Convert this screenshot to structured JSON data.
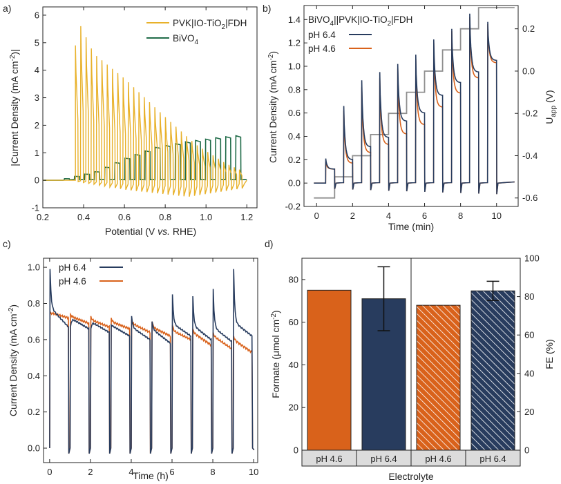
{
  "colors": {
    "pvk": "#e8b12a",
    "bivo4": "#1f6b48",
    "ph64": "#283c5e",
    "ph46": "#d9621b",
    "uapp": "#8f8f8f"
  },
  "chart_data": [
    {
      "panel": "a)",
      "type": "line",
      "xlabel": "Potential (V vs. RHE)",
      "ylabel": "|Current Density (mA cm⁻²)|",
      "xlim": [
        0.2,
        1.25
      ],
      "ylim": [
        -1,
        6.3
      ],
      "xticks": [
        "0.2",
        "0.4",
        "0.6",
        "0.8",
        "1.0",
        "1.2"
      ],
      "yticks": [
        "-1",
        "0",
        "1",
        "2",
        "3",
        "4",
        "5",
        "6"
      ],
      "chopped_voltammetry": true,
      "series": [
        {
          "name": "PVK|IO-TiO₂|FDH",
          "color_key": "pvk",
          "onset": 0.36,
          "end": 1.19,
          "spikes": 32,
          "peak_envelope": {
            "x": [
              0.36,
              0.37,
              0.45,
              0.6,
              0.8,
              0.95,
              1.1,
              1.19
            ],
            "y": [
              4.9,
              5.85,
              4.6,
              3.7,
              2.3,
              1.3,
              0.6,
              0.3
            ]
          },
          "dark_envelope": {
            "x": [
              0.36,
              0.6,
              0.9,
              1.2
            ],
            "y": [
              -0.05,
              -0.35,
              -0.6,
              -0.25
            ]
          }
        },
        {
          "name": "BiVO₄",
          "color_key": "bivo4",
          "onset": 0.3,
          "end": 1.19,
          "steps": 18,
          "plateau_envelope": {
            "x": [
              0.3,
              0.45,
              0.6,
              0.75,
              0.9,
              1.05,
              1.19
            ],
            "y": [
              0.05,
              0.3,
              0.8,
              1.2,
              1.4,
              1.55,
              1.65
            ]
          }
        }
      ]
    },
    {
      "panel": "b)",
      "type": "line",
      "title": "BiVO₄||PVK|IO-TiO₂|FDH",
      "xlabel": "Time (min)",
      "ylabel": "Current Density (mA cm⁻²)",
      "y2label": "U",
      "y2label_sub": "app",
      "y2label_unit": " (V)",
      "xlim": [
        -0.7,
        11.2
      ],
      "ylim": [
        -0.2,
        1.52
      ],
      "y2lim": [
        -0.64,
        0.31
      ],
      "xticks": [
        "0",
        "2",
        "4",
        "6",
        "8",
        "10"
      ],
      "yticks": [
        "-0.2",
        "0.0",
        "0.2",
        "0.4",
        "0.6",
        "0.8",
        "1.0",
        "1.2",
        "1.4"
      ],
      "y2ticks": [
        "-0.6",
        "-0.4",
        "-0.2",
        "0.0",
        "0.2"
      ],
      "light_on_times": [
        0.5,
        1.5,
        2.5,
        3.5,
        4.5,
        5.5,
        6.5,
        7.5,
        8.5,
        9.5
      ],
      "light_off_times": [
        1.0,
        2.0,
        3.0,
        4.0,
        5.0,
        6.0,
        7.0,
        8.0,
        9.0,
        10.0
      ],
      "series": [
        {
          "name": "pH 6.4",
          "color_key": "ph64",
          "spike": [
            0.21,
            0.66,
            0.88,
            0.95,
            1.02,
            1.1,
            1.23,
            1.32,
            1.45,
            1.38
          ],
          "plateau": [
            0.12,
            0.2,
            0.31,
            0.39,
            0.53,
            0.6,
            0.75,
            0.86,
            0.95,
            1.05
          ]
        },
        {
          "name": "pH 4.6",
          "color_key": "ph46",
          "spike": [
            0.18,
            0.62,
            0.82,
            0.9,
            0.98,
            1.06,
            1.2,
            1.3,
            1.42,
            1.36
          ],
          "plateau": [
            0.12,
            0.17,
            0.26,
            0.33,
            0.42,
            0.5,
            0.65,
            0.77,
            0.9,
            1.03
          ]
        },
        {
          "name": "Uapp",
          "color_key": "uapp",
          "axis": "y2",
          "x": [
            -0.15,
            1.0,
            1.0,
            2.0,
            2.0,
            3.0,
            3.0,
            4.0,
            4.0,
            5.0,
            5.0,
            6.0,
            6.0,
            7.0,
            7.0,
            8.0,
            8.0,
            9.0,
            9.0,
            10.0,
            10.0,
            11.0
          ],
          "y": [
            -0.6,
            -0.6,
            -0.5,
            -0.5,
            -0.4,
            -0.4,
            -0.3,
            -0.3,
            -0.2,
            -0.2,
            -0.1,
            -0.1,
            0.0,
            0.0,
            0.1,
            0.1,
            0.2,
            0.2,
            0.3,
            0.3,
            0.3,
            0.3
          ]
        }
      ]
    },
    {
      "panel": "c)",
      "type": "line",
      "xlabel": "Time (h)",
      "ylabel": "Current Density (mA cm⁻²)",
      "xlim": [
        -0.3,
        10.2
      ],
      "ylim": [
        -0.08,
        1.05
      ],
      "xticks": [
        "0",
        "2",
        "4",
        "6",
        "8",
        "10"
      ],
      "yticks": [
        "0.0",
        "0.2",
        "0.4",
        "0.6",
        "0.8",
        "1.0"
      ],
      "series": [
        {
          "name": "pH 6.4",
          "color_key": "ph64",
          "spike": [
            0.99,
            0.67,
            0.66,
            0.68,
            0.73,
            0.7,
            0.85,
            0.84,
            0.88,
            0.99
          ],
          "start": [
            0.78,
            0.72,
            0.7,
            0.68,
            0.67,
            0.66,
            0.69,
            0.68,
            0.67,
            0.7
          ],
          "end": [
            0.67,
            0.66,
            0.64,
            0.62,
            0.6,
            0.58,
            0.62,
            0.6,
            0.59,
            0.62
          ]
        },
        {
          "name": "pH 4.6",
          "color_key": "ph46",
          "spike": [
            0.74,
            0.74,
            0.73,
            0.72,
            0.71,
            0.7,
            0.68,
            0.66,
            0.64,
            0.62
          ],
          "start": [
            0.75,
            0.73,
            0.71,
            0.7,
            0.69,
            0.67,
            0.65,
            0.64,
            0.62,
            0.6
          ],
          "end": [
            0.72,
            0.69,
            0.67,
            0.66,
            0.64,
            0.62,
            0.6,
            0.57,
            0.55,
            0.53
          ]
        }
      ]
    },
    {
      "panel": "d)",
      "type": "bar",
      "xlabel": "Electrolyte",
      "ylabel": "Formate (μmol cm⁻²)",
      "y2label": "FE (%)",
      "ylim": [
        0,
        90
      ],
      "y2lim": [
        0,
        100
      ],
      "yticks": [
        "0",
        "20",
        "40",
        "60",
        "80"
      ],
      "y2ticks": [
        "0",
        "20",
        "40",
        "60",
        "80",
        "100"
      ],
      "categories": [
        "pH 4.6",
        "pH 6.4",
        "pH 4.6",
        "pH 6.4"
      ],
      "groups": [
        "Formate",
        "FE"
      ],
      "bars": [
        {
          "category": "pH 4.6",
          "axis": "left",
          "value": 75,
          "color_key": "ph46",
          "hatched": false
        },
        {
          "category": "pH 6.4",
          "axis": "left",
          "value": 71,
          "error": 15,
          "color_key": "ph64",
          "hatched": false
        },
        {
          "category": "pH 4.6",
          "axis": "right",
          "value": 75.5,
          "color_key": "ph46",
          "hatched": true
        },
        {
          "category": "pH 6.4",
          "axis": "right",
          "value": 83,
          "error": 5,
          "color_key": "ph64",
          "hatched": true
        }
      ]
    }
  ]
}
